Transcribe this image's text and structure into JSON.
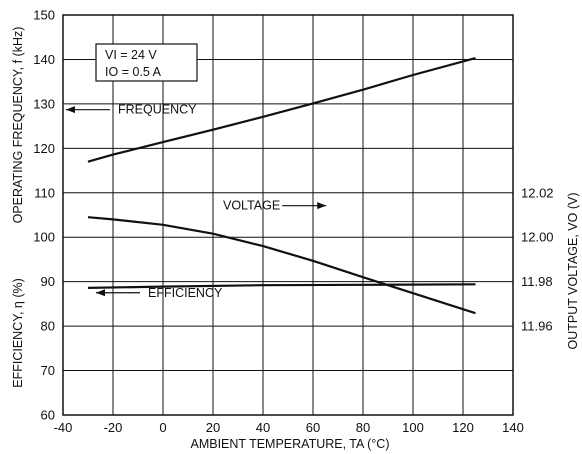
{
  "chart_data": {
    "type": "line",
    "title": "",
    "xlabel": "AMBIENT TEMPERATURE, TA (°C)",
    "ylabel_left_top": "OPERATING FREQUENCY, f (kHz)",
    "ylabel_left_bottom": "EFFICIENCY, η (%)",
    "ylabel_right": "OUTPUT VOLTAGE, VO (V)",
    "xlim": [
      -40,
      140
    ],
    "ylim": [
      60,
      150
    ],
    "x_ticks": [
      -40,
      -20,
      0,
      20,
      40,
      60,
      80,
      100,
      120,
      140
    ],
    "y_ticks": [
      60,
      70,
      80,
      90,
      100,
      110,
      120,
      130,
      140,
      150
    ],
    "y2_ticks": [
      {
        "label": "12.02",
        "y": 110
      },
      {
        "label": "12.00",
        "y": 100
      },
      {
        "label": "11.98",
        "y": 90
      },
      {
        "label": "11.96",
        "y": 80
      }
    ],
    "grid": true,
    "conditions": [
      "VI = 24 V",
      "IO = 0.5 A"
    ],
    "series": [
      {
        "name": "FREQUENCY",
        "axis": "left",
        "x": [
          -30,
          -20,
          0,
          20,
          40,
          60,
          80,
          100,
          125
        ],
        "y": [
          117,
          118.6,
          121.4,
          124.2,
          127.1,
          130.1,
          133.2,
          136.5,
          140.3
        ]
      },
      {
        "name": "VOLTAGE",
        "axis": "right",
        "x": [
          -30,
          -20,
          0,
          20,
          40,
          60,
          80,
          100,
          125
        ],
        "y": [
          104.5,
          104.0,
          102.8,
          100.8,
          98.0,
          94.7,
          91.0,
          87.4,
          82.9
        ]
      },
      {
        "name": "EFFICIENCY",
        "axis": "left",
        "x": [
          -30,
          0,
          40,
          80,
          125
        ],
        "y": [
          88.6,
          88.9,
          89.2,
          89.3,
          89.4
        ]
      }
    ],
    "annotations": [
      {
        "text": "FREQUENCY",
        "x": -18,
        "y": 127.8,
        "arrow": "left"
      },
      {
        "text": "VOLTAGE",
        "x": 24,
        "y": 106.2,
        "arrow": "right"
      },
      {
        "text": "EFFICIENCY",
        "x": -6,
        "y": 86.6,
        "arrow": "left"
      }
    ]
  }
}
